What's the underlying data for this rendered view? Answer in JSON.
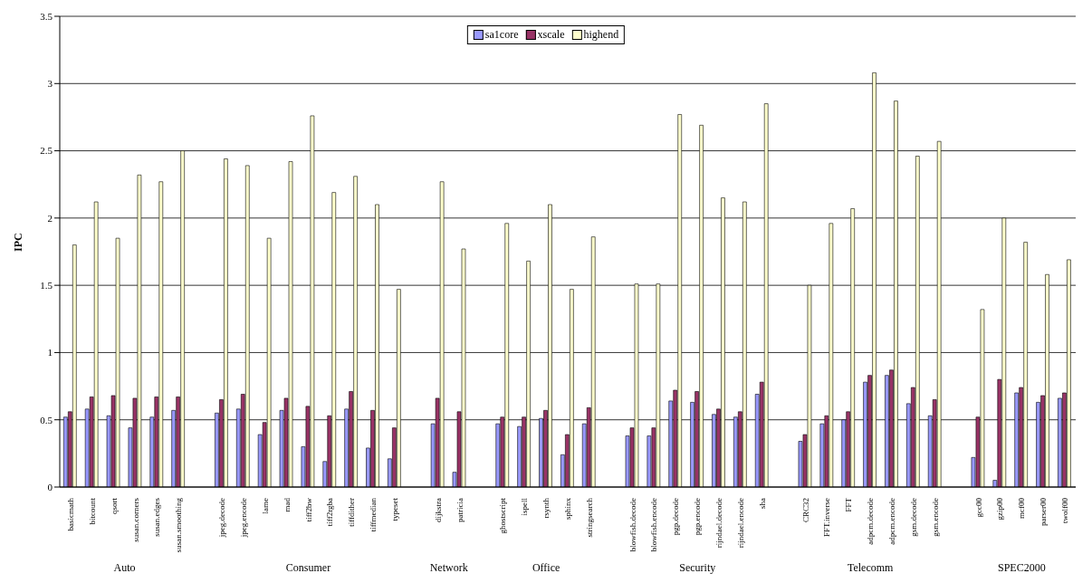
{
  "chart_data": {
    "type": "bar",
    "ylabel": "IPC",
    "ylim": [
      0,
      3.5
    ],
    "yticks": [
      0,
      0.5,
      1,
      1.5,
      2,
      2.5,
      3,
      3.5
    ],
    "grid": "y",
    "legend": "top",
    "categories": [
      "basicmath",
      "bitcount",
      "qsort",
      "susan.corners",
      "susan.edges",
      "susan.smoothing",
      null,
      "jpeg.decode",
      "jpeg.encode",
      "lame",
      "mad",
      "tiff2bw",
      "tiff2rgba",
      "tiffdither",
      "tiffmedian",
      "typeset",
      null,
      "dijkstra",
      "patricia",
      null,
      "ghostscript",
      "ispell",
      "rsynth",
      "sphinx",
      "stringsearch",
      null,
      "blowfish.decode",
      "blowfish.encode",
      "pgp.decode",
      "pgp.encode",
      "rijndael.decode",
      "rijndael.encode",
      "sha",
      null,
      "CRC32",
      "FFT.inverse",
      "FFT",
      "adpcm.decode",
      "adpcm.encode",
      "gsm.decode",
      "gsm.encode",
      null,
      "gcc00",
      "gzip00",
      "mcf00",
      "parser00",
      "twolf00"
    ],
    "series": [
      {
        "name": "sa1core",
        "color": "#9999ff",
        "values": [
          0.52,
          0.58,
          0.53,
          0.44,
          0.52,
          0.57,
          null,
          0.55,
          0.58,
          0.39,
          0.57,
          0.3,
          0.19,
          0.58,
          0.29,
          0.21,
          null,
          0.47,
          0.11,
          null,
          0.47,
          0.45,
          0.51,
          0.24,
          0.47,
          null,
          0.38,
          0.38,
          0.64,
          0.63,
          0.54,
          0.52,
          0.69,
          null,
          0.34,
          0.47,
          0.5,
          0.78,
          0.83,
          0.62,
          0.53,
          null,
          0.22,
          0.05,
          0.7,
          0.63,
          0.66
        ]
      },
      {
        "name": "xscale",
        "color": "#993366",
        "values": [
          0.56,
          0.67,
          0.68,
          0.66,
          0.67,
          0.67,
          null,
          0.65,
          0.69,
          0.48,
          0.66,
          0.6,
          0.53,
          0.71,
          0.57,
          0.44,
          null,
          0.66,
          0.56,
          null,
          0.52,
          0.52,
          0.57,
          0.39,
          0.59,
          null,
          0.44,
          0.44,
          0.72,
          0.71,
          0.58,
          0.56,
          0.78,
          null,
          0.39,
          0.53,
          0.56,
          0.83,
          0.87,
          0.74,
          0.65,
          null,
          0.52,
          0.8,
          0.74,
          0.68,
          0.7
        ]
      },
      {
        "name": "highend",
        "color": "#ffffcc",
        "values": [
          1.8,
          2.12,
          1.85,
          2.32,
          2.27,
          2.5,
          null,
          2.44,
          2.39,
          1.85,
          2.42,
          2.76,
          2.19,
          2.31,
          2.1,
          1.47,
          null,
          2.27,
          1.77,
          null,
          1.96,
          1.68,
          2.1,
          1.47,
          1.86,
          null,
          1.51,
          1.51,
          2.77,
          2.69,
          2.15,
          2.12,
          2.85,
          null,
          1.5,
          1.96,
          2.07,
          3.08,
          2.87,
          2.46,
          2.57,
          null,
          1.32,
          2.0,
          1.82,
          1.58,
          1.69
        ]
      }
    ],
    "annotations": [
      "Auto",
      "Consumer",
      "Network",
      "Office",
      "Security",
      "Telecomm",
      "SPEC2000"
    ]
  }
}
